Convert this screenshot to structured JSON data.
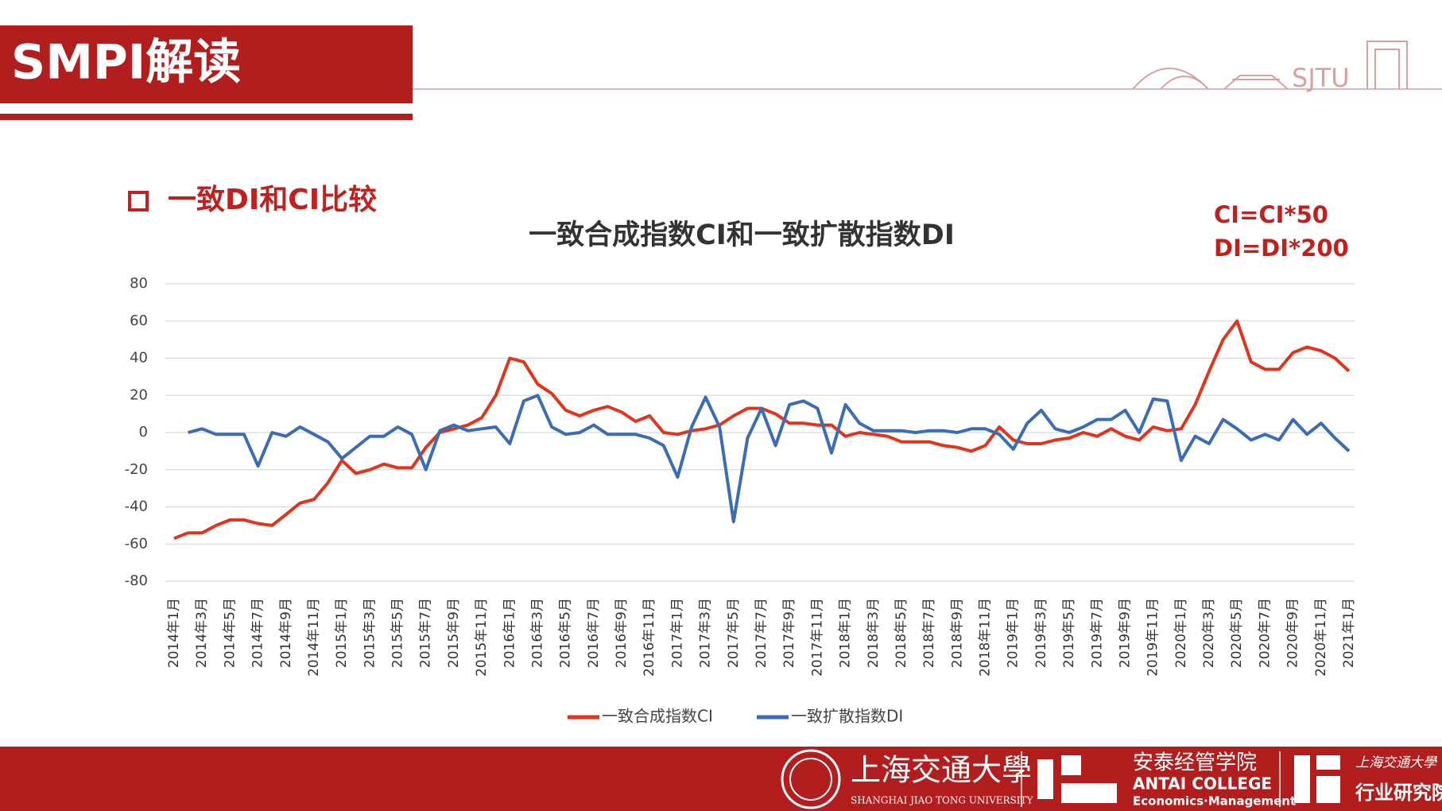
{
  "header": {
    "title": "SMPI解读",
    "logo": "SJTU"
  },
  "section": "一致DI和CI比较",
  "chart_data": {
    "type": "line",
    "title": "一致合成指数CI和一致扩散指数DI",
    "annotations": [
      "CI=CI*50",
      "DI=DI*200"
    ],
    "categories": [
      "2014年1月",
      null,
      "2014年3月",
      null,
      "2014年5月",
      null,
      "2014年7月",
      null,
      "2014年9月",
      null,
      "2014年11月",
      null,
      "2015年1月",
      null,
      "2015年3月",
      null,
      "2015年5月",
      null,
      "2015年7月",
      null,
      "2015年9月",
      null,
      "2015年11月",
      null,
      "2016年1月",
      null,
      "2016年3月",
      null,
      "2016年5月",
      null,
      "2016年7月",
      null,
      "2016年9月",
      null,
      "2016年11月",
      null,
      "2017年1月",
      null,
      "2017年3月",
      null,
      "2017年5月",
      null,
      "2017年7月",
      null,
      "2017年9月",
      null,
      "2017年11月",
      null,
      "2018年1月",
      null,
      "2018年3月",
      null,
      "2018年5月",
      null,
      "2018年7月",
      null,
      "2018年9月",
      null,
      "2018年11月",
      null,
      "2019年1月",
      null,
      "2019年3月",
      null,
      "2019年5月",
      null,
      "2019年7月",
      null,
      "2019年9月",
      null,
      "2019年11月",
      null,
      "2020年1月",
      null,
      "2020年3月",
      null,
      "2020年5月",
      null,
      "2020年7月",
      null,
      "2020年9月",
      null,
      "2020年11月",
      null,
      "2021年1月"
    ],
    "series": [
      {
        "name": "一致合成指数CI",
        "color": "#e2341d",
        "values": [
          -57,
          -54,
          -54,
          -50,
          -47,
          -47,
          -49,
          -50,
          -44,
          -38,
          -36,
          -27,
          -15,
          -22,
          -20,
          -17,
          -19,
          -19,
          -8,
          0,
          2,
          4,
          8,
          20,
          40,
          38,
          26,
          21,
          12,
          9,
          12,
          14,
          11,
          6,
          9,
          0,
          -1,
          1,
          2,
          4,
          9,
          13,
          13,
          10,
          5,
          5,
          4,
          4,
          -2,
          0,
          -1,
          -2,
          -5,
          -5,
          -5,
          -7,
          -8,
          -10,
          -7,
          3,
          -4,
          -6,
          -6,
          -4,
          -3,
          0,
          -2,
          2,
          -2,
          -4,
          3,
          1,
          2,
          15,
          33,
          50,
          60,
          38,
          34,
          34,
          43,
          46,
          44,
          40,
          33
        ]
      },
      {
        "name": "一致扩散指数DI",
        "color": "#3a6db5",
        "values": [
          null,
          0,
          2,
          -1,
          -1,
          -1,
          -18,
          0,
          -2,
          3,
          -1,
          -5,
          -14,
          -8,
          -2,
          -2,
          3,
          -1,
          -20,
          1,
          4,
          1,
          2,
          3,
          -6,
          17,
          20,
          3,
          -1,
          0,
          4,
          -1,
          -1,
          -1,
          -3,
          -7,
          -24,
          3,
          19,
          3,
          -48,
          -3,
          13,
          -7,
          15,
          17,
          13,
          -11,
          15,
          5,
          1,
          1,
          1,
          0,
          1,
          1,
          0,
          2,
          2,
          -1,
          -9,
          5,
          12,
          2,
          0,
          3,
          7,
          7,
          12,
          0,
          18,
          17,
          -15,
          -2,
          -6,
          7,
          2,
          -4,
          -1,
          -4,
          7,
          -1,
          5,
          -3,
          -10
        ]
      }
    ],
    "ylim": [
      -80,
      80
    ],
    "yticks": [
      -80,
      -60,
      -40,
      -20,
      0,
      20,
      40,
      60,
      80
    ],
    "grid": true,
    "legend": "bottom"
  },
  "footer": {
    "university": "上海交通大學",
    "university_en": "SHANGHAI JIAO TONG UNIVERSITY",
    "college": "安泰经管学院",
    "college_en": "ANTAI COLLEGE",
    "college_sub": "Economics·Management",
    "institute_top": "上海交通大學",
    "institute": "行业研究院"
  }
}
